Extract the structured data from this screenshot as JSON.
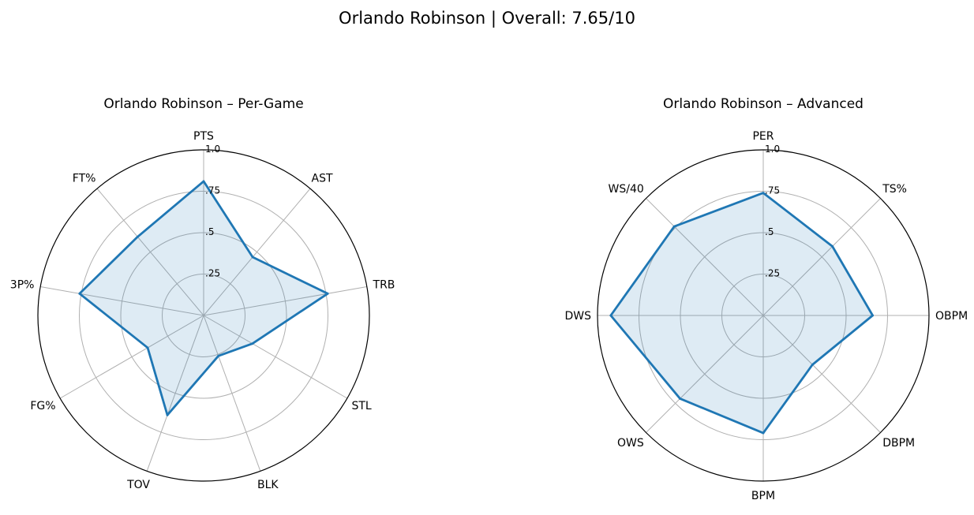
{
  "figure": {
    "suptitle": "Orlando Robinson | Overall: 7.65/10"
  },
  "colors": {
    "line": "#1f77b4",
    "fill": "#1f77b4",
    "grid": "#b0b0b0",
    "frame": "#000000"
  },
  "chart_data": [
    {
      "type": "radar",
      "title": "Orlando Robinson – Per-Game",
      "categories": [
        "PTS",
        "AST",
        "TRB",
        "STL",
        "BLK",
        "TOV",
        "FG%",
        "3P%",
        "FT%"
      ],
      "values": [
        0.81,
        0.46,
        0.76,
        0.34,
        0.26,
        0.64,
        0.39,
        0.76,
        0.62
      ],
      "rlim": [
        0,
        1
      ],
      "rticks": [
        0.25,
        0.5,
        0.75,
        1.0
      ],
      "rtick_labels": [
        ".25",
        ".5",
        ".75",
        "1.0"
      ],
      "grid": true
    },
    {
      "type": "radar",
      "title": "Orlando Robinson – Advanced",
      "categories": [
        "PER",
        "TS%",
        "OBPM",
        "DBPM",
        "BPM",
        "OWS",
        "DWS",
        "WS/40"
      ],
      "values": [
        0.74,
        0.59,
        0.66,
        0.42,
        0.71,
        0.71,
        0.92,
        0.76
      ],
      "rlim": [
        0,
        1
      ],
      "rticks": [
        0.25,
        0.5,
        0.75,
        1.0
      ],
      "rtick_labels": [
        ".25",
        ".5",
        ".75",
        "1.0"
      ],
      "grid": true
    }
  ]
}
